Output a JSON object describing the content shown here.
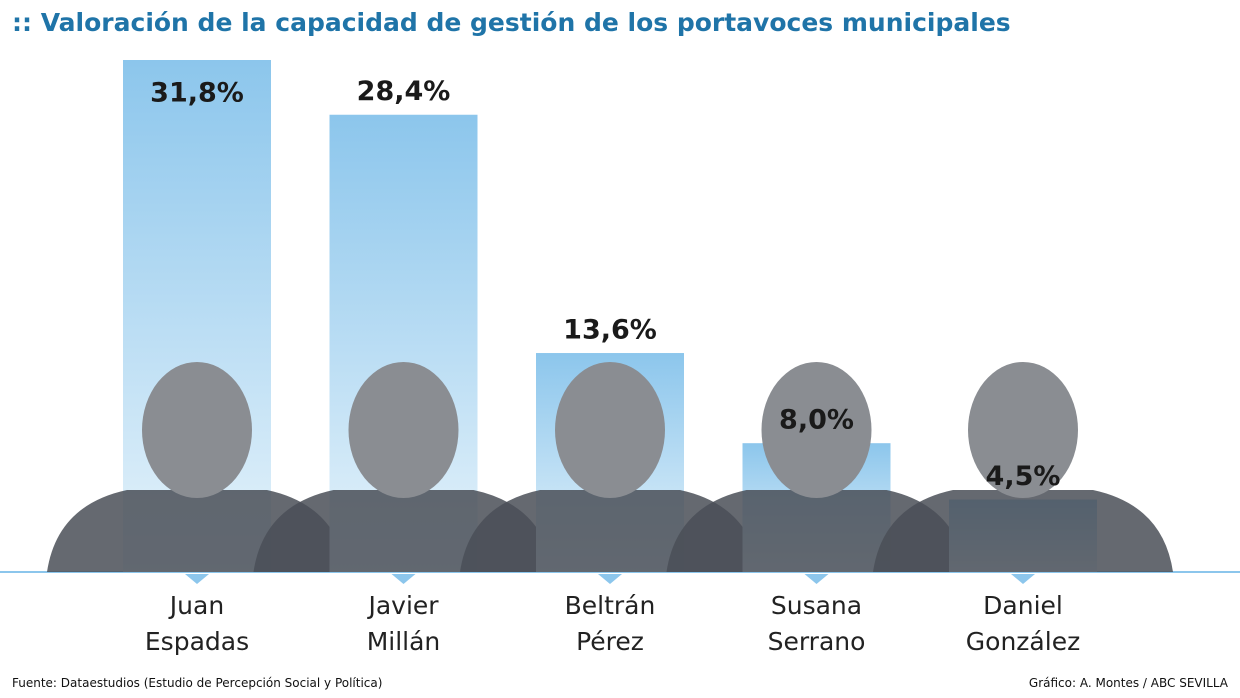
{
  "chart_data": {
    "type": "bar",
    "title": ":: Valoración de la capacidad de gestión de los portavoces municipales",
    "categories": [
      "Juan Espadas",
      "Javier Millán",
      "Beltrán Pérez",
      "Susana Serrano",
      "Daniel González"
    ],
    "values": [
      31.8,
      28.4,
      13.6,
      8.0,
      4.5
    ],
    "value_labels": [
      "31,8%",
      "28,4%",
      "13,6%",
      "8,0%",
      "4,5%"
    ],
    "color": "#8cc6ec",
    "source": "Fuente: Dataestudios (Estudio de Percepción Social y Política)",
    "credit": "Gráfico: A. Montes / ABC SEVILLA"
  }
}
